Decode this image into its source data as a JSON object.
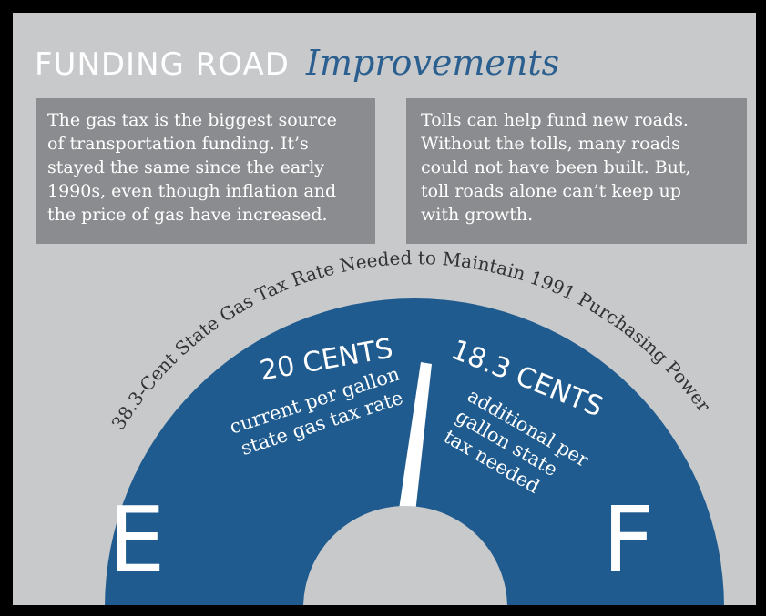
{
  "header": {
    "title": "FUNDING ROAD",
    "script_title": "Improvements"
  },
  "boxes": [
    {
      "lines": [
        "The gas tax is the biggest source",
        "of transportation funding. It’s",
        "stayed the same since the early",
        "1990s, even though inflation and",
        "the price of gas have increased."
      ]
    },
    {
      "lines": [
        "Tolls can help fund new roads.",
        "Without the tolls, many roads",
        "could not have been built. But,",
        "toll roads alone can’t keep up",
        "with growth."
      ]
    }
  ],
  "gauge": {
    "arc_label": "38.3-Cent State Gas Tax Rate Needed to Maintain 1991 Purchasing Power",
    "left": {
      "amount": "20 CENTS",
      "lines": [
        "current per gallon",
        "state gas tax rate"
      ]
    },
    "right": {
      "amount": "18.3 CENTS",
      "lines": [
        "additional per",
        "gallon state",
        "tax needed"
      ]
    },
    "empty_label": "E",
    "full_label": "F"
  }
}
